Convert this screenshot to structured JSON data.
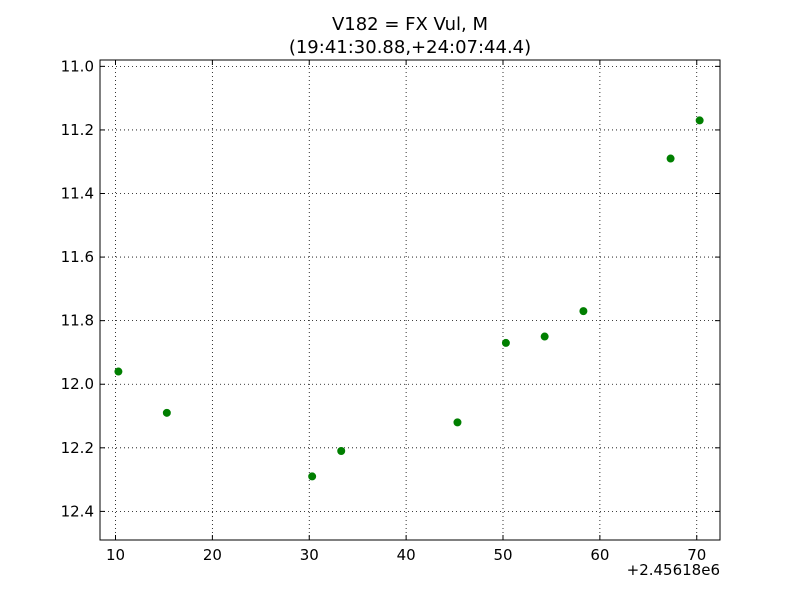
{
  "chart_data": {
    "type": "scatter",
    "title_lines": [
      "V182 = FX Vul, M",
      "(19:41:30.88,+24:07:44.4)"
    ],
    "x_offset_label": "+2.45618e6",
    "x_ticks": [
      10,
      20,
      30,
      40,
      50,
      60,
      70
    ],
    "y_ticks": [
      11.0,
      11.2,
      11.4,
      11.6,
      11.8,
      12.0,
      12.2,
      12.4
    ],
    "x_tick_labels": [
      "10",
      "20",
      "30",
      "40",
      "50",
      "60",
      "70"
    ],
    "y_tick_labels": [
      "11.0",
      "11.2",
      "11.4",
      "11.6",
      "11.8",
      "12.0",
      "12.2",
      "12.4"
    ],
    "xlim": [
      8.4,
      72.4
    ],
    "ylim": [
      12.49,
      10.98
    ],
    "y_inverted": true,
    "grid": true,
    "point_color": "#007f00",
    "points": [
      {
        "x": 10.3,
        "y": 11.96
      },
      {
        "x": 15.3,
        "y": 12.09
      },
      {
        "x": 30.3,
        "y": 12.29
      },
      {
        "x": 33.3,
        "y": 12.21
      },
      {
        "x": 45.3,
        "y": 12.12
      },
      {
        "x": 50.3,
        "y": 11.87
      },
      {
        "x": 54.3,
        "y": 11.85
      },
      {
        "x": 58.3,
        "y": 11.77
      },
      {
        "x": 67.3,
        "y": 11.29
      },
      {
        "x": 70.3,
        "y": 11.17
      }
    ]
  }
}
